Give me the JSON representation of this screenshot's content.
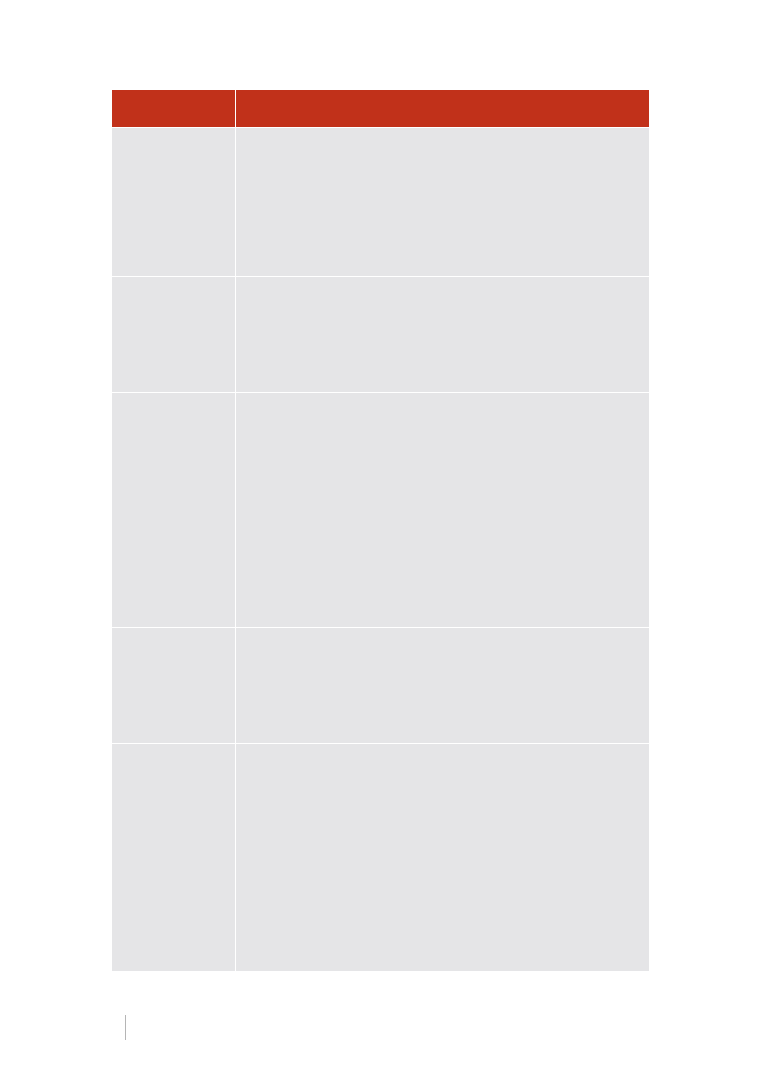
{
  "colors": {
    "header_fill": "#c1311a",
    "body_fill": "#e5e5e7",
    "divider": "#ffffff",
    "footer_rule": "#b5b5b5"
  },
  "table": {
    "headers": [
      "",
      ""
    ],
    "rows": [
      [
        "",
        ""
      ],
      [
        "",
        ""
      ],
      [
        "",
        ""
      ],
      [
        "",
        ""
      ],
      [
        "",
        ""
      ]
    ]
  },
  "footer": {
    "page_number": ""
  }
}
